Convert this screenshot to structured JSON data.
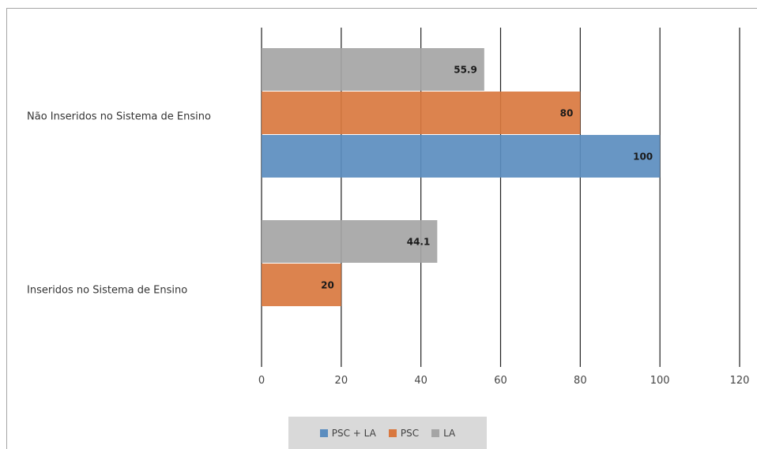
{
  "chart_data": {
    "type": "bar",
    "orientation": "horizontal",
    "categories": [
      "Não Inseridos no Sistema de Ensino",
      "Inseridos no Sistema de Ensino"
    ],
    "series": [
      {
        "name": "PSC + LA",
        "color": "#5b8dbf",
        "values": [
          100,
          null
        ]
      },
      {
        "name": "PSC",
        "color": "#d9783f",
        "values": [
          80,
          20
        ]
      },
      {
        "name": "LA",
        "color": "#a5a5a5",
        "values": [
          55.9,
          44.1
        ]
      }
    ],
    "data_labels": true,
    "xlim": [
      0,
      120
    ],
    "xticks": [
      0,
      20,
      40,
      60,
      80,
      100,
      120
    ],
    "grid": "vertical",
    "legend_position": "bottom"
  }
}
